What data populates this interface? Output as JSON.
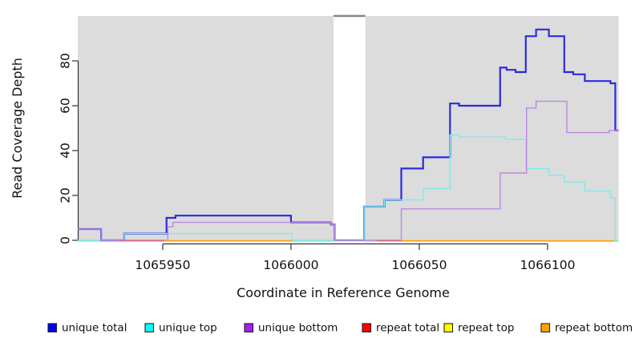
{
  "chart_data": {
    "type": "line",
    "step": "after",
    "title": "",
    "xlabel": "Coordinate in Reference Genome",
    "ylabel": "Read Coverage Depth",
    "xlim": [
      1065916.9,
      1066127.7
    ],
    "ylim": [
      0,
      100
    ],
    "x_ticks": [
      1065950,
      1066000,
      1066050,
      1066100
    ],
    "y_ticks": [
      0,
      20,
      40,
      60,
      80
    ],
    "grid": false,
    "legend_position": "bottom",
    "panel_color": "#dcdcdc",
    "background_regions": [
      {
        "kind": "covered",
        "x0": 1065916.9,
        "x1": 1066016.6,
        "color": "#dcdcdc"
      },
      {
        "kind": "gap",
        "x0": 1066016.6,
        "x1": 1066029.0,
        "color": "#ffffff",
        "top_marker_color": "#8a8a8a"
      },
      {
        "kind": "covered",
        "x0": 1066029.0,
        "x1": 1066127.7,
        "color": "#dcdcdc"
      }
    ],
    "series": [
      {
        "name": "unique total",
        "color": "#2b2be0",
        "legend_color": "#0000ff",
        "width": 2.2,
        "points": [
          [
            1065916.9,
            5
          ],
          [
            1065926,
            0
          ],
          [
            1065935,
            3
          ],
          [
            1065951.5,
            10
          ],
          [
            1065955,
            11
          ],
          [
            1066000,
            8
          ],
          [
            1066015.5,
            7
          ],
          [
            1066017,
            0
          ],
          [
            1066028.5,
            15
          ],
          [
            1066036.5,
            18
          ],
          [
            1066043,
            32
          ],
          [
            1066051.5,
            37
          ],
          [
            1066062,
            61
          ],
          [
            1066065.5,
            60
          ],
          [
            1066081.5,
            77
          ],
          [
            1066084,
            76
          ],
          [
            1066087.5,
            75
          ],
          [
            1066091.5,
            91
          ],
          [
            1066095.5,
            94
          ],
          [
            1066100.5,
            91
          ],
          [
            1066106.5,
            75
          ],
          [
            1066110,
            74
          ],
          [
            1066114.5,
            71
          ],
          [
            1066124.5,
            70
          ],
          [
            1066126.4,
            49
          ]
        ],
        "x_end": 1066127.7
      },
      {
        "name": "unique top",
        "color": "#7feaee",
        "legend_color": "#00ffff",
        "width": 1.4,
        "points": [
          [
            1065916.9,
            0
          ],
          [
            1065935,
            3
          ],
          [
            1066000.5,
            0
          ],
          [
            1066028.5,
            15
          ],
          [
            1066036.5,
            18
          ],
          [
            1066051.5,
            23
          ],
          [
            1066062,
            47
          ],
          [
            1066065.5,
            46
          ],
          [
            1066083.5,
            45
          ],
          [
            1066091.5,
            32
          ],
          [
            1066100.5,
            29
          ],
          [
            1066106.5,
            26
          ],
          [
            1066114.5,
            22
          ],
          [
            1066124.5,
            19
          ],
          [
            1066126.4,
            0
          ]
        ],
        "x_end": 1066127.7
      },
      {
        "name": "unique bottom",
        "color": "#bc88e0",
        "legend_color": "#a020f0",
        "width": 1.4,
        "points": [
          [
            1065916.9,
            5
          ],
          [
            1065926,
            0
          ],
          [
            1065952,
            6
          ],
          [
            1065954,
            8
          ],
          [
            1066015.5,
            7
          ],
          [
            1066017,
            0
          ],
          [
            1066043,
            14
          ],
          [
            1066081.5,
            30
          ],
          [
            1066091.8,
            59
          ],
          [
            1066095.5,
            62
          ],
          [
            1066107.5,
            48
          ],
          [
            1066124,
            49
          ]
        ],
        "x_end": 1066127.7
      },
      {
        "name": "repeat total",
        "color": "#e0687a",
        "legend_color": "#ff0000",
        "width": 1.4,
        "baseline_segments": [
          [
            1065933.5,
            1065950.5
          ],
          [
            1066033.5,
            1066043
          ]
        ]
      },
      {
        "name": "repeat top",
        "color": "#f0f040",
        "legend_color": "#ffff00",
        "width": 1.4,
        "baseline_segments": [
          [
            1065950.5,
            1066000.5
          ],
          [
            1066043,
            1066126
          ]
        ]
      },
      {
        "name": "repeat bottom",
        "color": "#ffa41a",
        "legend_color": "#ffa500",
        "width": 1.7,
        "baseline_segments": [
          [
            1065950.5,
            1066000.5
          ],
          [
            1066043,
            1066126
          ]
        ]
      }
    ],
    "baseline_extra": {
      "name": "zero-baseline-green",
      "color": "#97d897",
      "width": 1.4,
      "segments": [
        [
          1065916.9,
          1065933.5
        ],
        [
          1066000.5,
          1066016.6
        ],
        [
          1066029,
          1066033.5
        ],
        [
          1066126,
          1066127.7
        ]
      ]
    }
  },
  "legend": {
    "entries": [
      {
        "label": "unique total",
        "color": "#0000ff"
      },
      {
        "label": "unique top",
        "color": "#00ffff"
      },
      {
        "label": "unique bottom",
        "color": "#a020f0"
      },
      {
        "label": "repeat total",
        "color": "#ff0000"
      },
      {
        "label": "repeat top",
        "color": "#ffff00"
      },
      {
        "label": "repeat bottom",
        "color": "#ffa500"
      }
    ]
  }
}
